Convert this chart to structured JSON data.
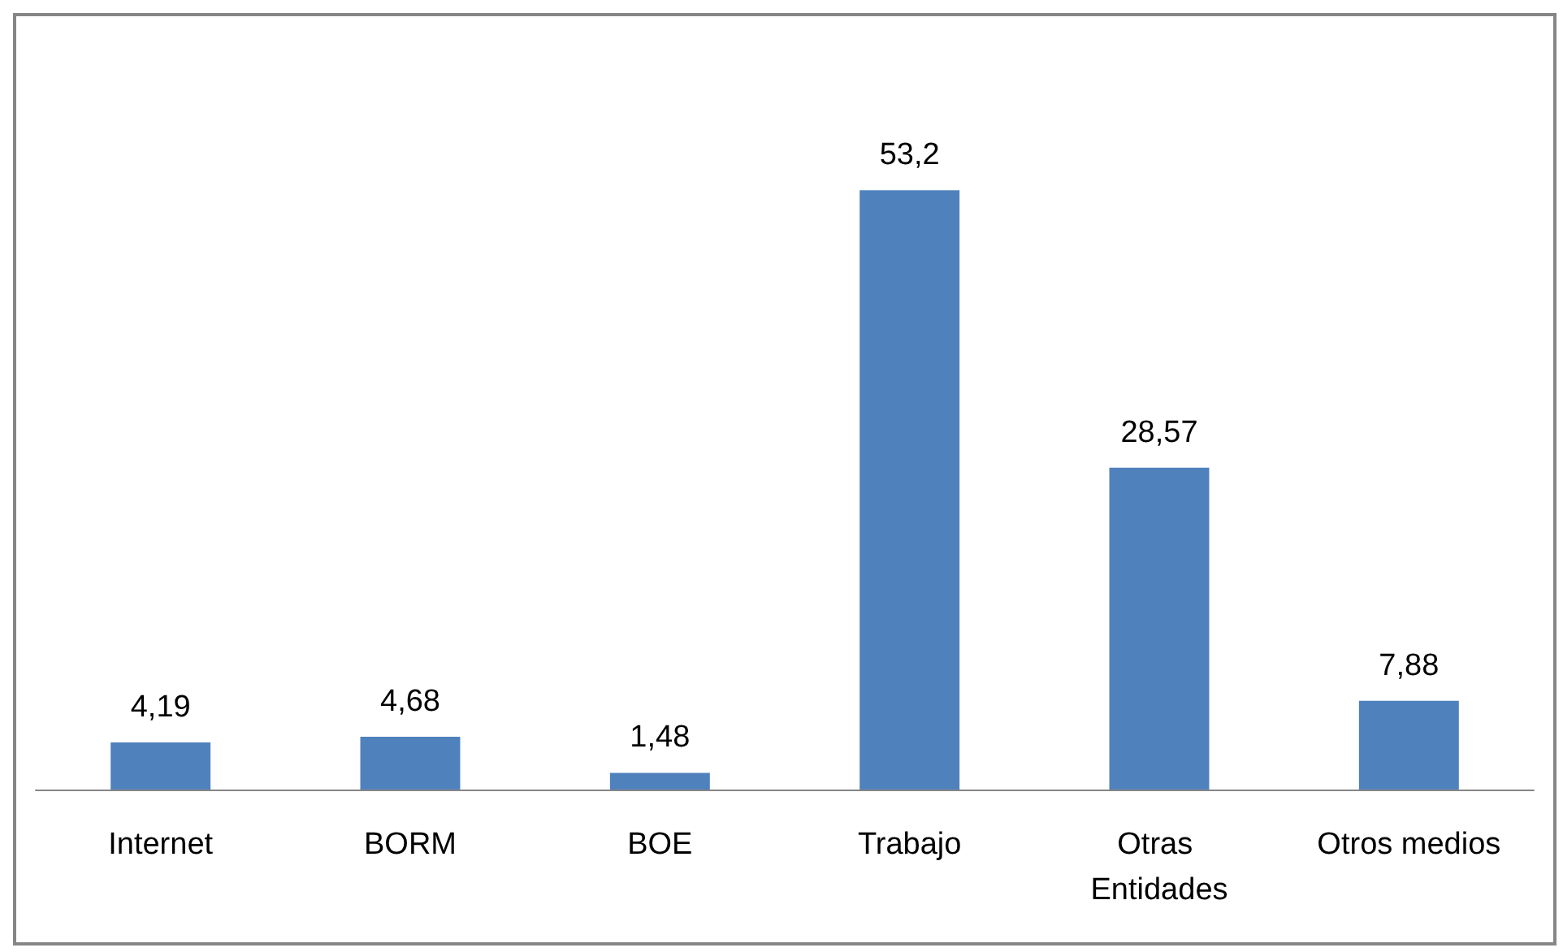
{
  "chart_data": {
    "type": "bar",
    "categories": [
      "Internet",
      "BORM",
      "BOE",
      "Trabajo",
      "Otras Entidades",
      "Otros medios"
    ],
    "values": [
      4.19,
      4.68,
      1.48,
      53.2,
      28.57,
      7.88
    ],
    "value_labels": [
      "4,19",
      "4,68",
      "1,48",
      "53,2",
      "28,57",
      "7,88"
    ],
    "color": "#4f81bd"
  }
}
